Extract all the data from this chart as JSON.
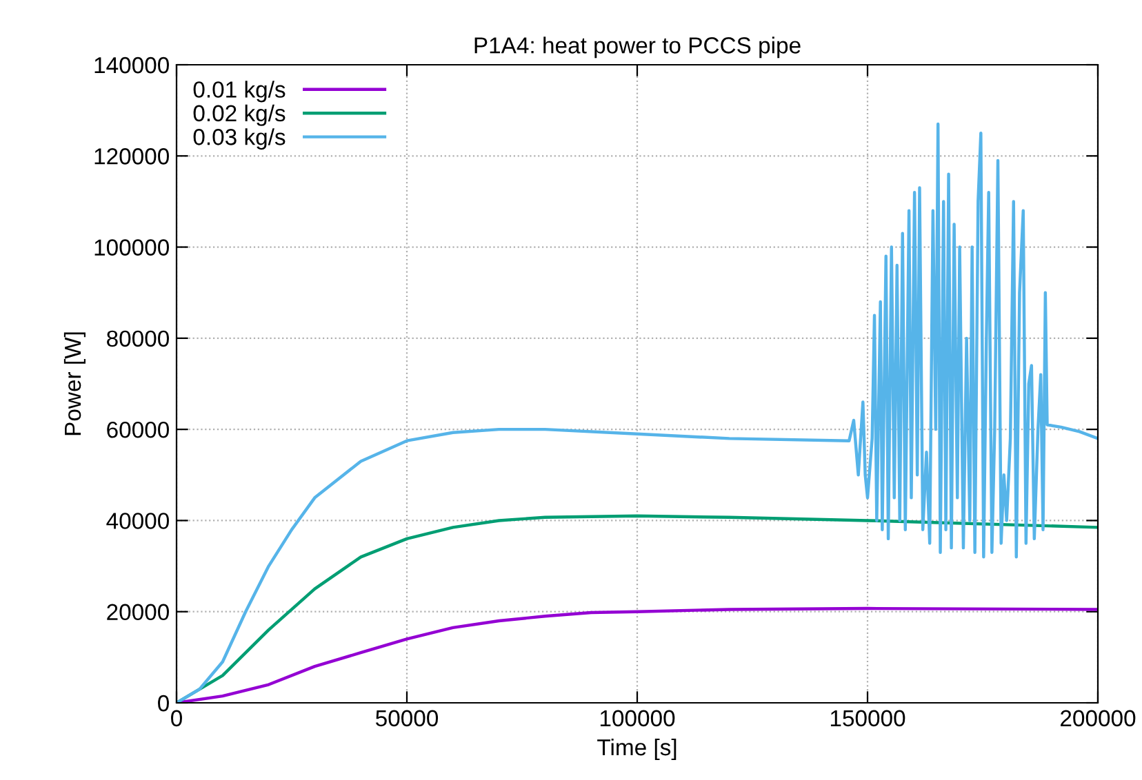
{
  "chart_data": {
    "type": "line",
    "title": "P1A4: heat power to PCCS pipe",
    "xlabel": "Time [s]",
    "ylabel": "Power [W]",
    "xlim": [
      0,
      200000
    ],
    "xticks": [
      0,
      50000,
      100000,
      150000,
      200000
    ],
    "ylim": [
      0,
      140000
    ],
    "yticks": [
      0,
      20000,
      40000,
      60000,
      80000,
      100000,
      120000,
      140000
    ],
    "grid": true,
    "legend": "top left",
    "marker": "none",
    "line_style": "solid",
    "series": [
      {
        "name": "0.01 kg/s",
        "color": "#9400d3",
        "x": [
          0,
          10000,
          20000,
          30000,
          40000,
          50000,
          60000,
          70000,
          80000,
          90000,
          100000,
          120000,
          150000,
          200000
        ],
        "values": [
          0,
          1500,
          4000,
          8000,
          11000,
          14000,
          16500,
          18000,
          19000,
          19800,
          20000,
          20500,
          20700,
          20500
        ]
      },
      {
        "name": "0.02 kg/s",
        "color": "#009e73",
        "x": [
          0,
          10000,
          20000,
          30000,
          40000,
          50000,
          60000,
          70000,
          80000,
          100000,
          120000,
          150000,
          200000
        ],
        "values": [
          0,
          6000,
          16000,
          25000,
          32000,
          36000,
          38500,
          40000,
          40700,
          41000,
          40700,
          40000,
          38500
        ]
      },
      {
        "name": "0.03 kg/s",
        "color": "#56b4e9",
        "x": [
          0,
          5000,
          10000,
          15000,
          20000,
          25000,
          30000,
          40000,
          50000,
          60000,
          70000,
          80000,
          100000,
          120000,
          146000,
          147000,
          148000,
          149000,
          149500,
          150000,
          151000,
          151500,
          152000,
          152800,
          153200,
          154000,
          154500,
          155200,
          155800,
          156400,
          157000,
          157600,
          158200,
          159000,
          159500,
          160200,
          160800,
          161300,
          162000,
          162800,
          163500,
          164200,
          164800,
          165300,
          165800,
          166500,
          167000,
          167600,
          168200,
          168800,
          169500,
          170000,
          170800,
          171500,
          172200,
          172700,
          173300,
          174000,
          174600,
          175200,
          175800,
          176300,
          177000,
          177600,
          178300,
          179000,
          179600,
          180200,
          181000,
          181700,
          182300,
          183000,
          183800,
          184400,
          185000,
          185600,
          186200,
          187000,
          187600,
          188100,
          188600,
          189000,
          192000,
          196000,
          200000
        ],
        "values": [
          0,
          3000,
          9000,
          20000,
          30000,
          38000,
          45000,
          53000,
          57500,
          59300,
          60000,
          60000,
          59000,
          58000,
          57500,
          62000,
          50000,
          66000,
          50000,
          45000,
          58000,
          85000,
          40000,
          88000,
          38000,
          98000,
          36000,
          100000,
          45000,
          96000,
          40000,
          103000,
          38000,
          108000,
          45000,
          112000,
          50000,
          113000,
          38000,
          55000,
          35000,
          108000,
          60000,
          127000,
          33000,
          110000,
          38000,
          116000,
          34000,
          105000,
          45000,
          100000,
          34000,
          80000,
          40000,
          100000,
          33000,
          110000,
          125000,
          32000,
          80000,
          112000,
          33000,
          60000,
          119000,
          35000,
          50000,
          40000,
          58000,
          110000,
          32000,
          90000,
          108000,
          35000,
          70000,
          74000,
          36000,
          60000,
          72000,
          38000,
          90000,
          61000,
          60500,
          59500,
          58000
        ]
      }
    ]
  }
}
